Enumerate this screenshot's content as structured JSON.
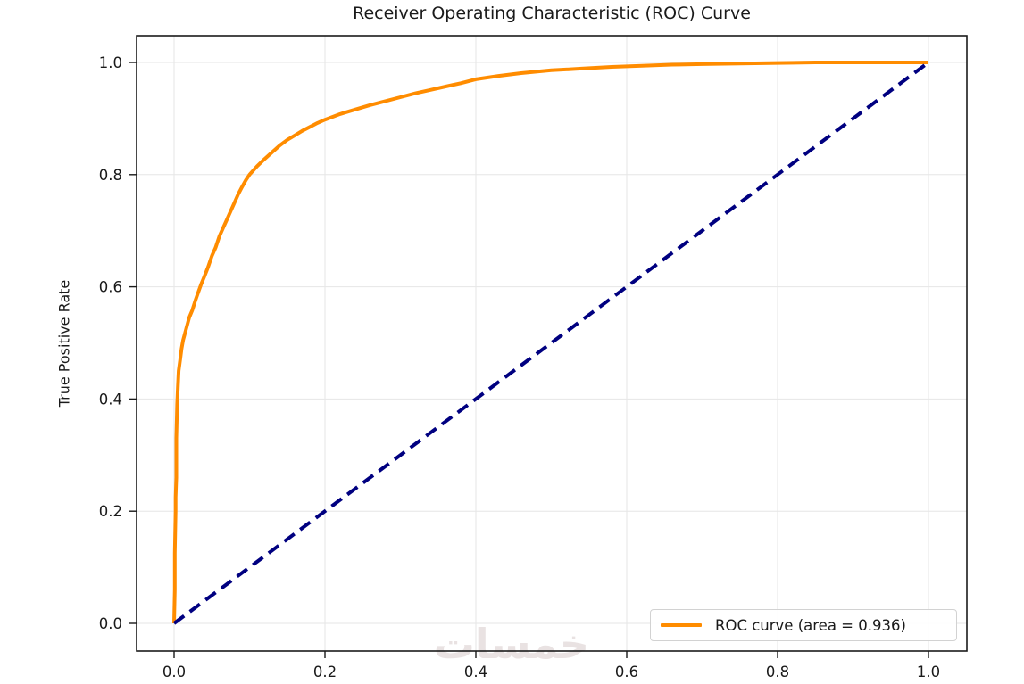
{
  "watermark": "خمسات",
  "chart_data": {
    "type": "line",
    "title": "Receiver Operating Characteristic (ROC) Curve",
    "xlabel": "",
    "ylabel": "True Positive Rate",
    "xlim": [
      -0.05,
      1.05
    ],
    "ylim": [
      -0.05,
      1.05
    ],
    "grid": true,
    "grid_color": "#e6e6e6",
    "spine_color": "#1a1a1a",
    "tick_label_color": "#1a1a1a",
    "auc": 0.936,
    "xticks": [
      {
        "v": 0.0,
        "label": "0.0"
      },
      {
        "v": 0.2,
        "label": "0.2"
      },
      {
        "v": 0.4,
        "label": "0.4"
      },
      {
        "v": 0.6,
        "label": "0.6"
      },
      {
        "v": 0.8,
        "label": "0.8"
      },
      {
        "v": 1.0,
        "label": "1.0"
      }
    ],
    "yticks": [
      {
        "v": 0.0,
        "label": "0.0"
      },
      {
        "v": 0.2,
        "label": "0.2"
      },
      {
        "v": 0.4,
        "label": "0.4"
      },
      {
        "v": 0.6,
        "label": "0.6"
      },
      {
        "v": 0.8,
        "label": "0.8"
      },
      {
        "v": 1.0,
        "label": "1.0"
      }
    ],
    "legend": {
      "position": "lower right",
      "entries": [
        {
          "label": "ROC curve (area = 0.936)",
          "color": "#FF8C00"
        }
      ]
    },
    "series": [
      {
        "name": "ROC curve (area = 0.936)",
        "color": "#FF8C00",
        "style": "solid",
        "width": 4,
        "points": [
          [
            0.0,
            0.0
          ],
          [
            0.001,
            0.06
          ],
          [
            0.001,
            0.125
          ],
          [
            0.002,
            0.2
          ],
          [
            0.002,
            0.225
          ],
          [
            0.003,
            0.26
          ],
          [
            0.003,
            0.33
          ],
          [
            0.004,
            0.39
          ],
          [
            0.005,
            0.42
          ],
          [
            0.006,
            0.45
          ],
          [
            0.008,
            0.47
          ],
          [
            0.01,
            0.49
          ],
          [
            0.012,
            0.505
          ],
          [
            0.014,
            0.515
          ],
          [
            0.016,
            0.525
          ],
          [
            0.018,
            0.535
          ],
          [
            0.02,
            0.545
          ],
          [
            0.024,
            0.558
          ],
          [
            0.028,
            0.575
          ],
          [
            0.032,
            0.59
          ],
          [
            0.036,
            0.605
          ],
          [
            0.04,
            0.618
          ],
          [
            0.045,
            0.635
          ],
          [
            0.05,
            0.655
          ],
          [
            0.055,
            0.67
          ],
          [
            0.06,
            0.69
          ],
          [
            0.065,
            0.705
          ],
          [
            0.07,
            0.72
          ],
          [
            0.075,
            0.735
          ],
          [
            0.08,
            0.75
          ],
          [
            0.085,
            0.765
          ],
          [
            0.09,
            0.778
          ],
          [
            0.095,
            0.79
          ],
          [
            0.1,
            0.8
          ],
          [
            0.11,
            0.815
          ],
          [
            0.12,
            0.828
          ],
          [
            0.13,
            0.84
          ],
          [
            0.14,
            0.852
          ],
          [
            0.15,
            0.862
          ],
          [
            0.16,
            0.87
          ],
          [
            0.17,
            0.878
          ],
          [
            0.18,
            0.885
          ],
          [
            0.19,
            0.892
          ],
          [
            0.2,
            0.898
          ],
          [
            0.22,
            0.908
          ],
          [
            0.24,
            0.916
          ],
          [
            0.26,
            0.924
          ],
          [
            0.28,
            0.931
          ],
          [
            0.3,
            0.938
          ],
          [
            0.32,
            0.945
          ],
          [
            0.34,
            0.951
          ],
          [
            0.36,
            0.957
          ],
          [
            0.38,
            0.963
          ],
          [
            0.4,
            0.97
          ],
          [
            0.43,
            0.976
          ],
          [
            0.46,
            0.981
          ],
          [
            0.5,
            0.986
          ],
          [
            0.54,
            0.989
          ],
          [
            0.58,
            0.992
          ],
          [
            0.62,
            0.994
          ],
          [
            0.66,
            0.996
          ],
          [
            0.7,
            0.997
          ],
          [
            0.75,
            0.998
          ],
          [
            0.8,
            0.999
          ],
          [
            0.85,
            1.0
          ],
          [
            0.9,
            1.0
          ],
          [
            1.0,
            1.0
          ]
        ]
      },
      {
        "name": "chance-diagonal",
        "color": "#000080",
        "style": "dashed",
        "width": 4,
        "points": [
          [
            0.0,
            0.0
          ],
          [
            1.0,
            1.0
          ]
        ]
      }
    ]
  }
}
